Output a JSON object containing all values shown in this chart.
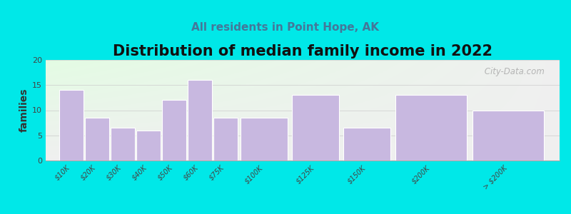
{
  "title": "Distribution of median family income in 2022",
  "subtitle": "All residents in Point Hope, AK",
  "ylabel": "families",
  "categories": [
    "$10K",
    "$20K",
    "$30K",
    "$40K",
    "$50K",
    "$60K",
    "$75K",
    "$100K",
    "$125K",
    "$150K",
    "$200K",
    "> $200K"
  ],
  "values": [
    14,
    8.5,
    6.5,
    6,
    12,
    16,
    8.5,
    8.5,
    13,
    6.5,
    13,
    10
  ],
  "bar_widths": [
    1,
    1,
    1,
    1,
    1,
    1,
    1,
    2,
    2,
    2,
    3,
    3
  ],
  "bar_lefts": [
    0,
    1,
    2,
    3,
    4,
    5,
    6,
    7,
    9,
    11,
    13,
    16
  ],
  "bar_color": "#c8b8e0",
  "bar_edge_color": "#ffffff",
  "background_color": "#00e8e8",
  "plot_bg_color_tl": "#ddeedd",
  "plot_bg_color_tr": "#f0f0f0",
  "plot_bg_color_bl": "#f0f0f0",
  "plot_bg_color_br": "#f0f0f0",
  "ylim": [
    0,
    20
  ],
  "yticks": [
    0,
    5,
    10,
    15,
    20
  ],
  "title_fontsize": 15,
  "subtitle_fontsize": 11,
  "ylabel_fontsize": 10,
  "tick_label_fontsize": 7,
  "watermark": " City-Data.com"
}
